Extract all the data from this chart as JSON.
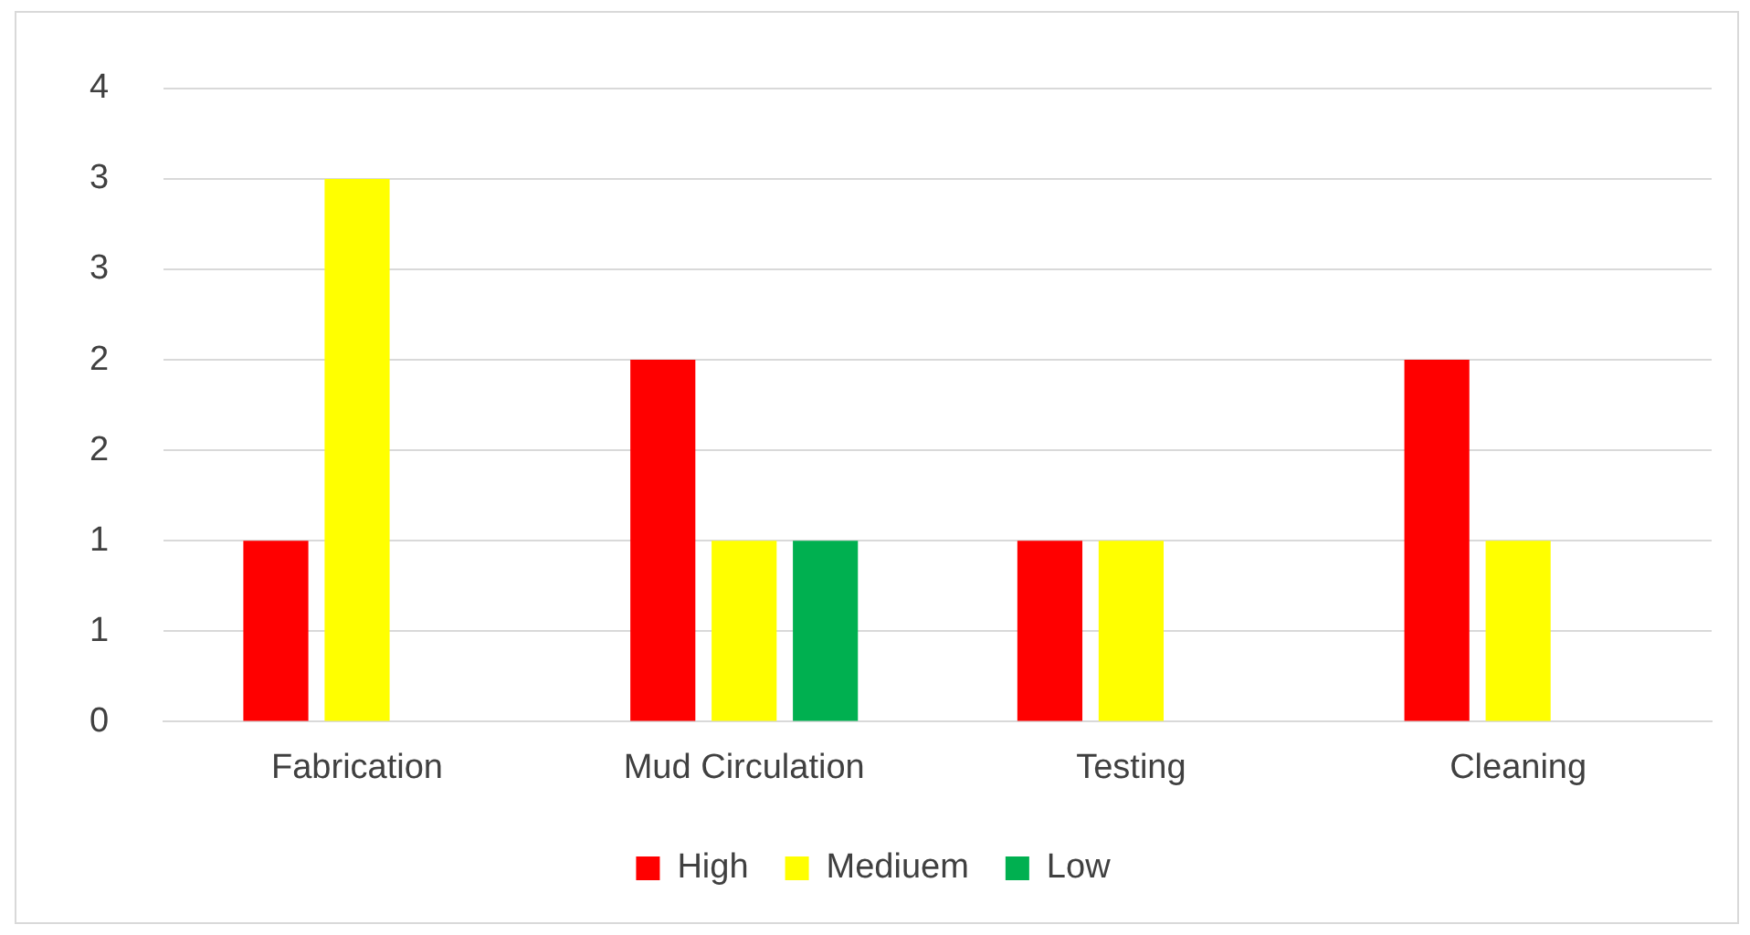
{
  "chart_data": {
    "type": "bar",
    "categories": [
      "Fabrication",
      "Mud Circulation",
      "Testing",
      "Cleaning"
    ],
    "series": [
      {
        "name": "High",
        "color": "#ff0000",
        "values": [
          1,
          2,
          1,
          2
        ]
      },
      {
        "name": "Mediuem",
        "color": "#ffff00",
        "values": [
          3,
          1,
          1,
          1
        ]
      },
      {
        "name": "Low",
        "color": "#00b050",
        "values": [
          null,
          1,
          null,
          null
        ]
      }
    ],
    "ylim": [
      0,
      3.5
    ],
    "yticks": [
      {
        "value": 0,
        "label": "0"
      },
      {
        "value": 0.5,
        "label": "1"
      },
      {
        "value": 1,
        "label": "1"
      },
      {
        "value": 1.5,
        "label": "2"
      },
      {
        "value": 2,
        "label": "2"
      },
      {
        "value": 2.5,
        "label": "3"
      },
      {
        "value": 3,
        "label": "3"
      },
      {
        "value": 3.5,
        "label": "4"
      }
    ],
    "grid": "y",
    "legend": "bottom"
  }
}
